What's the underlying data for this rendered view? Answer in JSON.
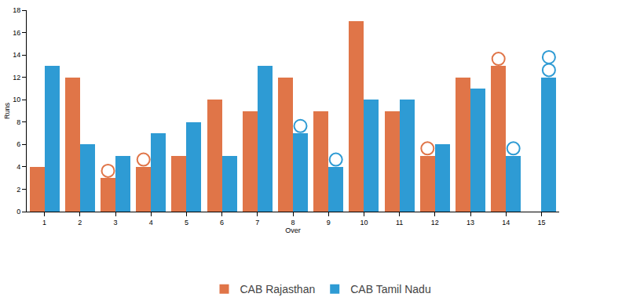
{
  "chart_data": {
    "type": "bar",
    "x_label": "Over",
    "y_label": "Runs",
    "categories": [
      "1",
      "2",
      "3",
      "4",
      "5",
      "6",
      "7",
      "8",
      "9",
      "10",
      "11",
      "12",
      "13",
      "14",
      "15"
    ],
    "series": [
      {
        "name": "CAB Rajasthan",
        "color": "#e07548",
        "values": [
          4,
          12,
          3,
          4,
          5,
          10,
          9,
          12,
          9,
          17,
          9,
          5,
          12,
          13,
          null
        ],
        "wickets": [
          0,
          0,
          1,
          1,
          0,
          0,
          0,
          0,
          0,
          0,
          0,
          1,
          0,
          1,
          0
        ]
      },
      {
        "name": "CAB Tamil Nadu",
        "color": "#2e9bd4",
        "values": [
          13,
          6,
          5,
          7,
          8,
          5,
          13,
          7,
          4,
          10,
          10,
          6,
          11,
          5,
          12
        ],
        "wickets": [
          0,
          0,
          0,
          0,
          0,
          0,
          0,
          1,
          1,
          0,
          0,
          0,
          0,
          1,
          2
        ]
      }
    ],
    "ylim": [
      0,
      18
    ],
    "yticks": [
      0,
      2,
      4,
      6,
      8,
      10,
      12,
      14,
      16,
      18
    ],
    "grid": false,
    "legend": "bottom"
  }
}
